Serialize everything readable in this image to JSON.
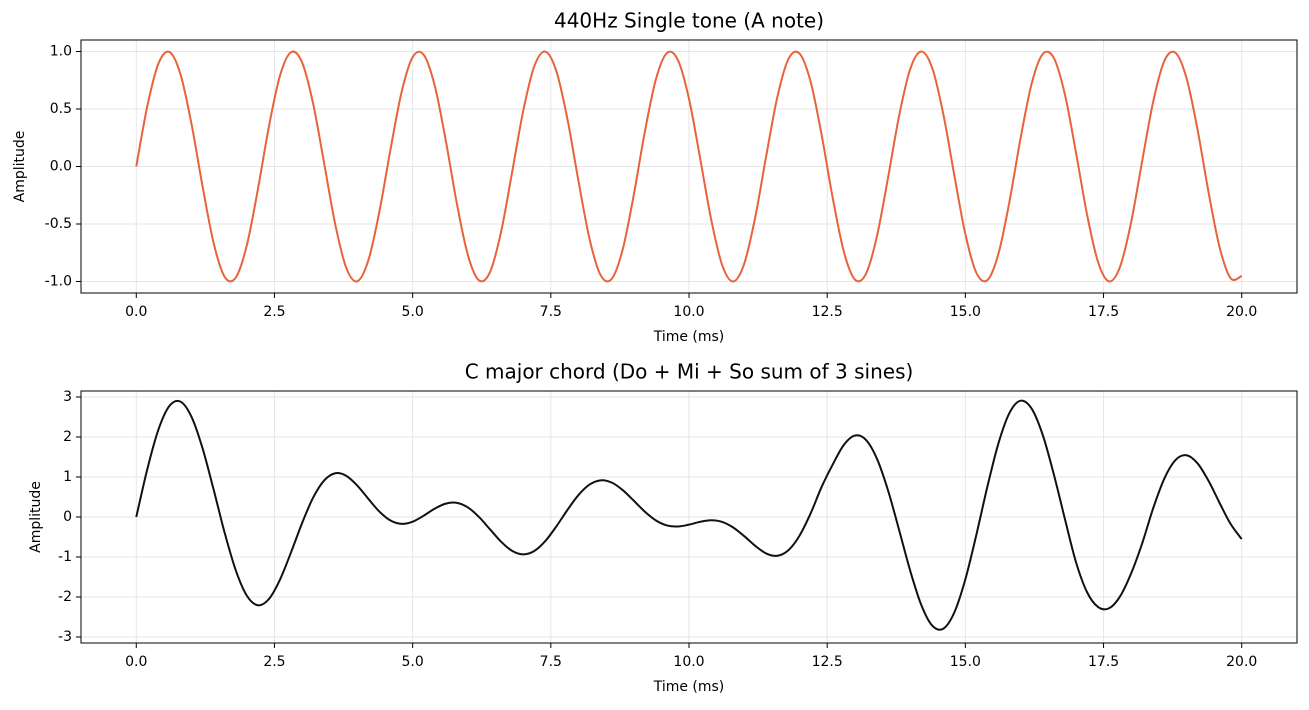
{
  "chart_data": [
    {
      "type": "line",
      "title": "440Hz Single tone (A note)",
      "xlabel": "Time (ms)",
      "ylabel": "Amplitude",
      "color": "#e8623a",
      "grid": true,
      "xlim": [
        -1,
        21
      ],
      "ylim": [
        -1.1,
        1.1
      ],
      "xticks": [
        {
          "value": 0,
          "label": "0.0"
        },
        2.5,
        {
          "value": 5,
          "label": "5.0"
        },
        7.5,
        {
          "value": 10,
          "label": "10.0"
        },
        12.5,
        {
          "value": 15,
          "label": "15.0"
        },
        17.5,
        {
          "value": 20,
          "label": "20.0"
        }
      ],
      "yticks": [
        {
          "value": -1,
          "label": "-1.0"
        },
        -0.5,
        {
          "value": 0,
          "label": "0.0"
        },
        0.5,
        {
          "value": 1,
          "label": "1.0"
        }
      ],
      "x": [
        0,
        0.2,
        0.4,
        0.6,
        0.8,
        1,
        1.2,
        1.4,
        1.6,
        1.8,
        2,
        2.2,
        2.4,
        2.6,
        2.8,
        3,
        3.2,
        3.4,
        3.6,
        3.8,
        4,
        4.2,
        4.4,
        4.6,
        4.8,
        5,
        5.2,
        5.4,
        5.6,
        5.8,
        6,
        6.2,
        6.4,
        6.6,
        6.8,
        7,
        7.2,
        7.4,
        7.6,
        7.8,
        8,
        8.2,
        8.4,
        8.6,
        8.8,
        9,
        9.2,
        9.4,
        9.6,
        9.8,
        10,
        10.2,
        10.4,
        10.6,
        10.8,
        11,
        11.2,
        11.4,
        11.6,
        11.8,
        12,
        12.2,
        12.4,
        12.6,
        12.8,
        13,
        13.2,
        13.4,
        13.6,
        13.8,
        14,
        14.2,
        14.4,
        14.6,
        14.8,
        15,
        15.2,
        15.4,
        15.6,
        15.8,
        16,
        16.2,
        16.4,
        16.6,
        16.8,
        17,
        17.2,
        17.4,
        17.6,
        17.8,
        18,
        18.2,
        18.4,
        18.6,
        18.8,
        19,
        19.2,
        19.4,
        19.6,
        19.8,
        20
      ],
      "values": [
        0,
        0.525,
        0.894,
        0.996,
        0.802,
        0.368,
        -0.175,
        -0.666,
        -0.96,
        -0.966,
        -0.685,
        -0.199,
        0.348,
        0.79,
        0.994,
        0.905,
        0.546,
        0.025,
        -0.504,
        -0.882,
        -0.998,
        -0.814,
        -0.388,
        0.15,
        0.647,
        0.951,
        0.972,
        0.703,
        0.224,
        -0.322,
        -0.771,
        -0.99,
        -0.918,
        -0.568,
        -0.05,
        0.482,
        0.87,
        0.999,
        0.83,
        0.414,
        -0.125,
        -0.628,
        -0.944,
        -0.978,
        -0.722,
        -0.249,
        0.299,
        0.756,
        0.987,
        0.925,
        0.588,
        0.075,
        -0.458,
        -0.857,
        -1,
        -0.844,
        -0.437,
        0.1,
        0.607,
        0.935,
        0.982,
        0.738,
        0.273,
        -0.273,
        -0.738,
        -0.982,
        -0.935,
        -0.607,
        -0.1,
        0.437,
        0.844,
        1,
        0.857,
        0.458,
        -0.075,
        -0.588,
        -0.925,
        -0.987,
        -0.756,
        -0.299,
        0.249,
        0.722,
        0.978,
        0.944,
        0.628,
        0.125,
        -0.414,
        -0.83,
        -0.999,
        -0.87,
        -0.482,
        0.05,
        0.568,
        0.918,
        0.99,
        0.771,
        0.322,
        -0.224,
        -0.703,
        -0.972,
        -0.951
      ]
    },
    {
      "type": "line",
      "title": "C major chord (Do + Mi + So sum of 3 sines)",
      "xlabel": "Time (ms)",
      "ylabel": "Amplitude",
      "color": "#111111",
      "grid": true,
      "xlim": [
        -1,
        21
      ],
      "ylim": [
        -3.15,
        3.15
      ],
      "xticks": [
        {
          "value": 0,
          "label": "0.0"
        },
        2.5,
        {
          "value": 5,
          "label": "5.0"
        },
        7.5,
        {
          "value": 10,
          "label": "10.0"
        },
        12.5,
        {
          "value": 15,
          "label": "15.0"
        },
        17.5,
        {
          "value": 20,
          "label": "20.0"
        }
      ],
      "yticks": [
        -3,
        -2,
        -1,
        0,
        1,
        2,
        3
      ],
      "x": [
        0,
        0.2,
        0.4,
        0.6,
        0.8,
        1,
        1.2,
        1.4,
        1.6,
        1.8,
        2,
        2.2,
        2.4,
        2.6,
        2.8,
        3,
        3.2,
        3.4,
        3.6,
        3.8,
        4,
        4.2,
        4.4,
        4.6,
        4.8,
        5,
        5.2,
        5.4,
        5.6,
        5.8,
        6,
        6.2,
        6.4,
        6.6,
        6.8,
        7,
        7.2,
        7.4,
        7.6,
        7.8,
        8,
        8.2,
        8.4,
        8.6,
        8.8,
        9,
        9.2,
        9.4,
        9.6,
        9.8,
        10,
        10.2,
        10.4,
        10.6,
        10.8,
        11,
        11.2,
        11.4,
        11.6,
        11.8,
        12,
        12.2,
        12.4,
        12.6,
        12.8,
        13,
        13.2,
        13.4,
        13.6,
        13.8,
        14,
        14.2,
        14.4,
        14.6,
        14.8,
        15,
        15.2,
        15.4,
        15.6,
        15.8,
        16,
        16.2,
        16.4,
        16.6,
        16.8,
        17,
        17.2,
        17.4,
        17.6,
        17.8,
        18,
        18.2,
        18.4,
        18.6,
        18.8,
        19,
        19.2,
        19.4,
        19.6,
        19.8,
        20
      ],
      "values": [
        0,
        1.198,
        2.182,
        2.777,
        2.884,
        2.502,
        1.715,
        0.683,
        -0.399,
        -1.332,
        -1.965,
        -2.206,
        -2.05,
        -1.567,
        -0.883,
        -0.152,
        0.485,
        0.915,
        1.094,
        1.028,
        0.783,
        0.451,
        0.133,
        -0.089,
        -0.172,
        -0.117,
        0.033,
        0.209,
        0.334,
        0.354,
        0.239,
        0.001,
        -0.308,
        -0.617,
        -0.847,
        -0.935,
        -0.851,
        -0.602,
        -0.235,
        0.175,
        0.548,
        0.81,
        0.917,
        0.862,
        0.673,
        0.409,
        0.135,
        -0.084,
        -0.211,
        -0.238,
        -0.191,
        -0.12,
        -0.082,
        -0.123,
        -0.262,
        -0.48,
        -0.723,
        -0.914,
        -0.97,
        -0.829,
        -0.465,
        0.089,
        0.754,
        1.311,
        1.8,
        2.036,
        1.93,
        1.458,
        0.669,
        -0.318,
        -1.334,
        -2.19,
        -2.715,
        -2.793,
        -2.388,
        -1.557,
        -0.439,
        0.768,
        1.848,
        2.607,
        2.908,
        2.707,
        2.05,
        1.069,
        -0.044,
        -1.122,
        -1.875,
        -2.249,
        -2.282,
        -1.982,
        -1.406,
        -0.654,
        0.228,
        0.962,
        1.421,
        1.543,
        1.342,
        0.902,
        0.35,
        -0.176,
        -0.552
      ]
    }
  ]
}
